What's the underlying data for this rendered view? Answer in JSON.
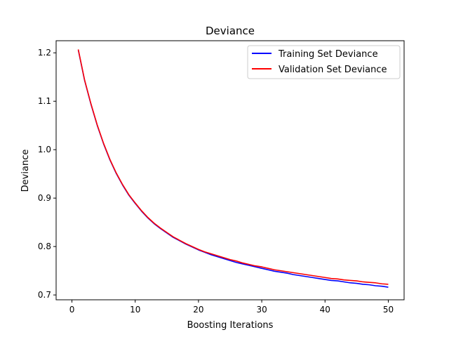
{
  "chart_data": {
    "type": "line",
    "title": "Deviance",
    "xlabel": "Boosting Iterations",
    "ylabel": "Deviance",
    "xlim": [
      -2.5,
      52.5
    ],
    "ylim": [
      0.69,
      1.225
    ],
    "xticks": [
      0,
      10,
      20,
      30,
      40,
      50
    ],
    "yticks": [
      0.7,
      0.8,
      0.9,
      1.0,
      1.1,
      1.2
    ],
    "ytick_labels": [
      "0.7",
      "0.8",
      "0.9",
      "1.0",
      "1.1",
      "1.2"
    ],
    "grid": false,
    "legend_position": "top-right",
    "x": [
      1,
      2,
      3,
      4,
      5,
      6,
      7,
      8,
      9,
      10,
      11,
      12,
      13,
      14,
      15,
      16,
      17,
      18,
      19,
      20,
      21,
      22,
      23,
      24,
      25,
      26,
      27,
      28,
      29,
      30,
      31,
      32,
      33,
      34,
      35,
      36,
      37,
      38,
      39,
      40,
      41,
      42,
      43,
      44,
      45,
      46,
      47,
      48,
      49,
      50
    ],
    "series": [
      {
        "name": "Training Set Deviance",
        "color": "#0000ff",
        "values": [
          1.206,
          1.143,
          1.094,
          1.05,
          1.012,
          0.979,
          0.951,
          0.927,
          0.906,
          0.889,
          0.873,
          0.859,
          0.847,
          0.837,
          0.828,
          0.819,
          0.812,
          0.805,
          0.799,
          0.793,
          0.788,
          0.783,
          0.779,
          0.775,
          0.771,
          0.767,
          0.764,
          0.761,
          0.758,
          0.755,
          0.752,
          0.749,
          0.747,
          0.745,
          0.742,
          0.74,
          0.738,
          0.736,
          0.734,
          0.732,
          0.73,
          0.729,
          0.727,
          0.725,
          0.724,
          0.722,
          0.721,
          0.719,
          0.718,
          0.716
        ]
      },
      {
        "name": "Validation Set Deviance",
        "color": "#ff0000",
        "values": [
          1.207,
          1.144,
          1.095,
          1.051,
          1.013,
          0.98,
          0.952,
          0.928,
          0.907,
          0.89,
          0.874,
          0.86,
          0.848,
          0.838,
          0.829,
          0.82,
          0.813,
          0.806,
          0.8,
          0.794,
          0.789,
          0.785,
          0.781,
          0.777,
          0.773,
          0.77,
          0.766,
          0.763,
          0.76,
          0.758,
          0.755,
          0.752,
          0.75,
          0.748,
          0.746,
          0.744,
          0.742,
          0.74,
          0.738,
          0.736,
          0.734,
          0.733,
          0.731,
          0.73,
          0.729,
          0.727,
          0.726,
          0.725,
          0.723,
          0.722
        ]
      }
    ]
  }
}
